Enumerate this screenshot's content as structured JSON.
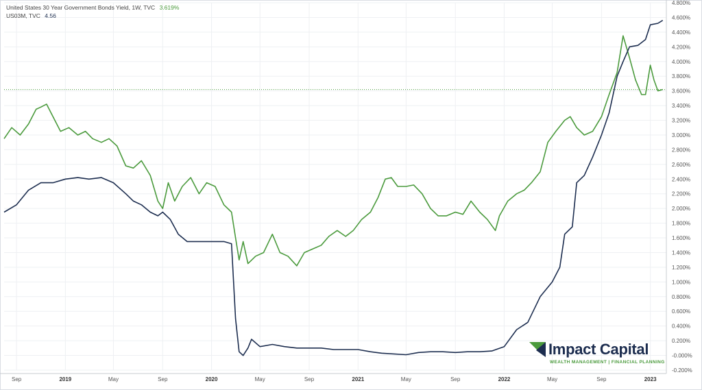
{
  "legend": {
    "series1_label": "United States 30 Year Government Bonds Yield, 1W, TVC",
    "series1_value": "3.619%",
    "series2_label": "US03M, TVC",
    "series2_value": "4.56"
  },
  "brand": {
    "name": "Impact Capital",
    "tagline": "WEALTH MANAGEMENT  |  FINANCIAL PLANNING"
  },
  "colors": {
    "series1": "#4a9a3c",
    "series2": "#1c2d4f",
    "brand_green": "#4a9a3c",
    "brand_navy": "#1c2d4f"
  },
  "chart_data": {
    "type": "line",
    "title": "",
    "xlabel": "",
    "ylabel": "",
    "x_range": [
      "2018-08",
      "2023-02"
    ],
    "ylim": [
      -0.2,
      4.8
    ],
    "y_ticks": [
      "4.800%",
      "4.600%",
      "4.400%",
      "4.200%",
      "4.000%",
      "3.800%",
      "3.600%",
      "3.400%",
      "3.200%",
      "3.000%",
      "2.800%",
      "2.600%",
      "2.400%",
      "2.200%",
      "2.000%",
      "1.800%",
      "1.600%",
      "1.400%",
      "1.200%",
      "1.000%",
      "0.800%",
      "0.600%",
      "0.400%",
      "0.200%",
      "-0.000%",
      "-0.200%"
    ],
    "x_ticks": [
      {
        "date": "2018-09",
        "label": "Sep",
        "year": false
      },
      {
        "date": "2019-01",
        "label": "2019",
        "year": true
      },
      {
        "date": "2019-05",
        "label": "May",
        "year": false
      },
      {
        "date": "2019-09",
        "label": "Sep",
        "year": false
      },
      {
        "date": "2020-01",
        "label": "2020",
        "year": true
      },
      {
        "date": "2020-05",
        "label": "May",
        "year": false
      },
      {
        "date": "2020-09",
        "label": "Sep",
        "year": false
      },
      {
        "date": "2021-01",
        "label": "2021",
        "year": true
      },
      {
        "date": "2021-05",
        "label": "May",
        "year": false
      },
      {
        "date": "2021-09",
        "label": "Sep",
        "year": false
      },
      {
        "date": "2022-01",
        "label": "2022",
        "year": true
      },
      {
        "date": "2022-05",
        "label": "May",
        "year": false
      },
      {
        "date": "2022-09",
        "label": "Sep",
        "year": false
      },
      {
        "date": "2023-01",
        "label": "2023",
        "year": true
      }
    ],
    "grid": true,
    "last_value_line": 3.619,
    "series": [
      {
        "name": "United States 30 Year Government Bonds Yield, 1W, TVC",
        "color": "#4a9a3c",
        "points": [
          [
            "2018-08-01",
            2.95
          ],
          [
            "2018-08-20",
            3.1
          ],
          [
            "2018-09-10",
            3.0
          ],
          [
            "2018-10-01",
            3.15
          ],
          [
            "2018-10-20",
            3.35
          ],
          [
            "2018-11-01",
            3.38
          ],
          [
            "2018-11-15",
            3.42
          ],
          [
            "2018-12-01",
            3.25
          ],
          [
            "2018-12-20",
            3.05
          ],
          [
            "2019-01-10",
            3.1
          ],
          [
            "2019-02-01",
            3.0
          ],
          [
            "2019-02-20",
            3.05
          ],
          [
            "2019-03-10",
            2.95
          ],
          [
            "2019-04-01",
            2.9
          ],
          [
            "2019-04-20",
            2.95
          ],
          [
            "2019-05-10",
            2.85
          ],
          [
            "2019-06-01",
            2.58
          ],
          [
            "2019-06-20",
            2.55
          ],
          [
            "2019-07-10",
            2.65
          ],
          [
            "2019-08-01",
            2.45
          ],
          [
            "2019-08-20",
            2.1
          ],
          [
            "2019-09-01",
            2.0
          ],
          [
            "2019-09-15",
            2.35
          ],
          [
            "2019-10-01",
            2.1
          ],
          [
            "2019-10-20",
            2.3
          ],
          [
            "2019-11-10",
            2.42
          ],
          [
            "2019-12-01",
            2.2
          ],
          [
            "2019-12-20",
            2.35
          ],
          [
            "2020-01-10",
            2.3
          ],
          [
            "2020-02-01",
            2.05
          ],
          [
            "2020-02-20",
            1.95
          ],
          [
            "2020-03-01",
            1.6
          ],
          [
            "2020-03-10",
            1.3
          ],
          [
            "2020-03-20",
            1.55
          ],
          [
            "2020-04-01",
            1.25
          ],
          [
            "2020-04-20",
            1.35
          ],
          [
            "2020-05-10",
            1.4
          ],
          [
            "2020-06-01",
            1.65
          ],
          [
            "2020-06-20",
            1.4
          ],
          [
            "2020-07-10",
            1.35
          ],
          [
            "2020-08-01",
            1.22
          ],
          [
            "2020-08-20",
            1.4
          ],
          [
            "2020-09-10",
            1.45
          ],
          [
            "2020-10-01",
            1.5
          ],
          [
            "2020-10-20",
            1.62
          ],
          [
            "2020-11-10",
            1.7
          ],
          [
            "2020-12-01",
            1.62
          ],
          [
            "2020-12-20",
            1.7
          ],
          [
            "2021-01-10",
            1.85
          ],
          [
            "2021-02-01",
            1.95
          ],
          [
            "2021-02-20",
            2.15
          ],
          [
            "2021-03-10",
            2.4
          ],
          [
            "2021-03-25",
            2.42
          ],
          [
            "2021-04-10",
            2.3
          ],
          [
            "2021-05-01",
            2.3
          ],
          [
            "2021-05-20",
            2.32
          ],
          [
            "2021-06-10",
            2.2
          ],
          [
            "2021-07-01",
            2.0
          ],
          [
            "2021-07-20",
            1.9
          ],
          [
            "2021-08-10",
            1.9
          ],
          [
            "2021-09-01",
            1.95
          ],
          [
            "2021-09-20",
            1.92
          ],
          [
            "2021-10-10",
            2.1
          ],
          [
            "2021-11-01",
            1.95
          ],
          [
            "2021-11-20",
            1.85
          ],
          [
            "2021-12-10",
            1.7
          ],
          [
            "2021-12-20",
            1.9
          ],
          [
            "2022-01-10",
            2.1
          ],
          [
            "2022-02-01",
            2.2
          ],
          [
            "2022-02-20",
            2.25
          ],
          [
            "2022-03-10",
            2.35
          ],
          [
            "2022-04-01",
            2.5
          ],
          [
            "2022-04-20",
            2.9
          ],
          [
            "2022-05-10",
            3.05
          ],
          [
            "2022-06-01",
            3.2
          ],
          [
            "2022-06-15",
            3.25
          ],
          [
            "2022-07-01",
            3.1
          ],
          [
            "2022-07-20",
            3.0
          ],
          [
            "2022-08-10",
            3.05
          ],
          [
            "2022-09-01",
            3.25
          ],
          [
            "2022-09-20",
            3.55
          ],
          [
            "2022-10-10",
            3.85
          ],
          [
            "2022-10-25",
            4.35
          ],
          [
            "2022-11-10",
            4.05
          ],
          [
            "2022-11-25",
            3.75
          ],
          [
            "2022-12-10",
            3.55
          ],
          [
            "2022-12-20",
            3.55
          ],
          [
            "2023-01-01",
            3.95
          ],
          [
            "2023-01-10",
            3.75
          ],
          [
            "2023-01-20",
            3.6
          ],
          [
            "2023-02-01",
            3.62
          ]
        ]
      },
      {
        "name": "US03M, TVC",
        "color": "#1c2d4f",
        "points": [
          [
            "2018-08-01",
            1.95
          ],
          [
            "2018-09-01",
            2.05
          ],
          [
            "2018-10-01",
            2.25
          ],
          [
            "2018-11-01",
            2.35
          ],
          [
            "2018-12-01",
            2.35
          ],
          [
            "2019-01-01",
            2.4
          ],
          [
            "2019-02-01",
            2.42
          ],
          [
            "2019-03-01",
            2.4
          ],
          [
            "2019-04-01",
            2.42
          ],
          [
            "2019-05-01",
            2.35
          ],
          [
            "2019-06-01",
            2.2
          ],
          [
            "2019-06-20",
            2.1
          ],
          [
            "2019-07-10",
            2.05
          ],
          [
            "2019-08-01",
            1.95
          ],
          [
            "2019-08-20",
            1.9
          ],
          [
            "2019-09-01",
            1.95
          ],
          [
            "2019-09-20",
            1.85
          ],
          [
            "2019-10-10",
            1.65
          ],
          [
            "2019-11-01",
            1.55
          ],
          [
            "2019-12-01",
            1.55
          ],
          [
            "2020-01-01",
            1.55
          ],
          [
            "2020-02-01",
            1.55
          ],
          [
            "2020-02-20",
            1.52
          ],
          [
            "2020-03-01",
            0.5
          ],
          [
            "2020-03-10",
            0.05
          ],
          [
            "2020-03-20",
            0.0
          ],
          [
            "2020-04-01",
            0.1
          ],
          [
            "2020-04-10",
            0.22
          ],
          [
            "2020-05-01",
            0.12
          ],
          [
            "2020-06-01",
            0.15
          ],
          [
            "2020-07-01",
            0.12
          ],
          [
            "2020-08-01",
            0.1
          ],
          [
            "2020-09-01",
            0.1
          ],
          [
            "2020-10-01",
            0.1
          ],
          [
            "2020-11-01",
            0.08
          ],
          [
            "2020-12-01",
            0.08
          ],
          [
            "2021-01-01",
            0.08
          ],
          [
            "2021-02-01",
            0.05
          ],
          [
            "2021-03-01",
            0.03
          ],
          [
            "2021-04-01",
            0.02
          ],
          [
            "2021-05-01",
            0.01
          ],
          [
            "2021-06-01",
            0.04
          ],
          [
            "2021-07-01",
            0.05
          ],
          [
            "2021-08-01",
            0.05
          ],
          [
            "2021-09-01",
            0.04
          ],
          [
            "2021-10-01",
            0.05
          ],
          [
            "2021-11-01",
            0.05
          ],
          [
            "2021-12-01",
            0.06
          ],
          [
            "2022-01-01",
            0.12
          ],
          [
            "2022-02-01",
            0.35
          ],
          [
            "2022-03-01",
            0.45
          ],
          [
            "2022-04-01",
            0.8
          ],
          [
            "2022-05-01",
            1.0
          ],
          [
            "2022-05-20",
            1.2
          ],
          [
            "2022-06-01",
            1.65
          ],
          [
            "2022-06-20",
            1.75
          ],
          [
            "2022-07-01",
            2.35
          ],
          [
            "2022-07-20",
            2.45
          ],
          [
            "2022-08-10",
            2.7
          ],
          [
            "2022-09-01",
            3.0
          ],
          [
            "2022-09-20",
            3.3
          ],
          [
            "2022-10-10",
            3.8
          ],
          [
            "2022-10-25",
            4.0
          ],
          [
            "2022-11-10",
            4.2
          ],
          [
            "2022-12-01",
            4.22
          ],
          [
            "2022-12-20",
            4.3
          ],
          [
            "2023-01-01",
            4.5
          ],
          [
            "2023-01-20",
            4.52
          ],
          [
            "2023-02-01",
            4.56
          ]
        ]
      }
    ]
  }
}
